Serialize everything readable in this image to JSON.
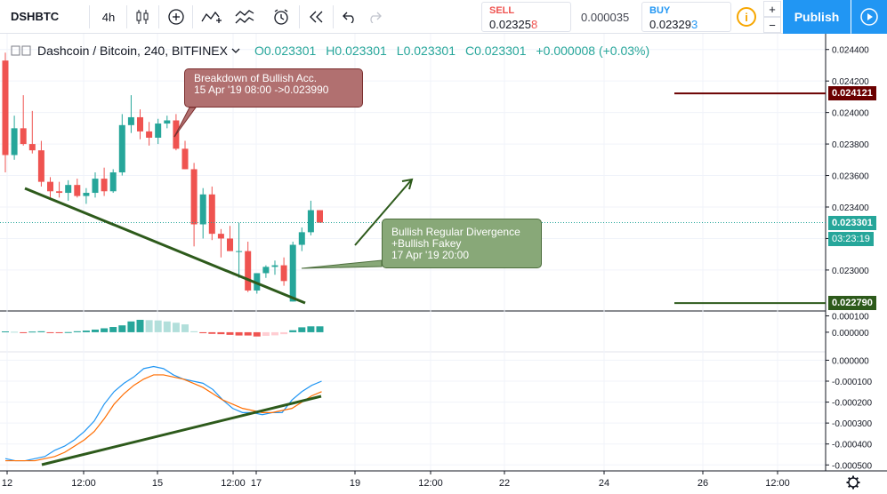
{
  "toolbar": {
    "symbol": "DSHBTC",
    "interval": "4h",
    "sell_label": "SELL",
    "sell_price_main": "0.02325",
    "sell_price_last": "8",
    "spread": "0.000035",
    "buy_label": "BUY",
    "buy_price_main": "0.02329",
    "buy_price_last": "3",
    "info_glyph": "i",
    "plus": "+",
    "minus": "−",
    "publish": "Publish",
    "icons": [
      "candles-icon",
      "add-indicator-icon",
      "indicators-icon",
      "compare-icon",
      "alert-icon",
      "replay-icon",
      "undo-icon",
      "redo-icon",
      "play-icon"
    ]
  },
  "legend": {
    "title": "Dashcoin / Bitcoin, 240, BITFINEX",
    "o": "O0.023301",
    "h": "H0.023301",
    "l": "L0.023301",
    "c": "C0.023301",
    "change": "+0.000008 (+0.03%)"
  },
  "annotations": {
    "red_callout": [
      "Breakdown of Bullish Acc.",
      "15 Apr '19 08:00 ->0.023990"
    ],
    "green_callout": [
      "Bullish Regular Divergence",
      "+Bullish Fakey",
      "17 Apr '19 20:00"
    ]
  },
  "price_tags": {
    "resistance": "0.024121",
    "current": "0.023301",
    "countdown": "03:23:19",
    "support": "0.022790"
  },
  "colors": {
    "up": "#26a69a",
    "down": "#ef5350",
    "trendline": "#2d5a1b",
    "resistance": "#6b0000",
    "support": "#2d5a1b",
    "current": "#26a69a",
    "macd_line": "#2196f3",
    "signal_line": "#ff6d00",
    "accent": "#2196f3"
  },
  "chart_data": {
    "type": "candlestick",
    "title": "Dashcoin / Bitcoin, 240, BITFINEX",
    "price_axis": {
      "ylim": [
        0.02274,
        0.0245
      ],
      "ticks": [
        "0.024400",
        "0.024200",
        "0.024000",
        "0.023800",
        "0.023600",
        "0.023400",
        "0.023200",
        "0.023000"
      ]
    },
    "time_axis": {
      "ticks": [
        "12",
        "12:00",
        "15",
        "12:00",
        "17",
        "19",
        "12:00",
        "22",
        "24",
        "26",
        "12:00"
      ]
    },
    "candles": [
      {
        "o": 0.02433,
        "h": 0.02438,
        "l": 0.02362,
        "c": 0.02373
      },
      {
        "o": 0.02373,
        "h": 0.02398,
        "l": 0.0237,
        "c": 0.0239
      },
      {
        "o": 0.0239,
        "h": 0.02411,
        "l": 0.02379,
        "c": 0.0238
      },
      {
        "o": 0.0238,
        "h": 0.02401,
        "l": 0.02374,
        "c": 0.02376
      },
      {
        "o": 0.02376,
        "h": 0.02382,
        "l": 0.02353,
        "c": 0.02356
      },
      {
        "o": 0.02356,
        "h": 0.02359,
        "l": 0.02346,
        "c": 0.0235
      },
      {
        "o": 0.0235,
        "h": 0.02356,
        "l": 0.02346,
        "c": 0.02349
      },
      {
        "o": 0.02349,
        "h": 0.02357,
        "l": 0.02344,
        "c": 0.02354
      },
      {
        "o": 0.02354,
        "h": 0.02358,
        "l": 0.02346,
        "c": 0.02347
      },
      {
        "o": 0.02347,
        "h": 0.02352,
        "l": 0.02342,
        "c": 0.02349
      },
      {
        "o": 0.02349,
        "h": 0.02362,
        "l": 0.02346,
        "c": 0.02358
      },
      {
        "o": 0.02358,
        "h": 0.02365,
        "l": 0.02347,
        "c": 0.0235
      },
      {
        "o": 0.0235,
        "h": 0.02364,
        "l": 0.02349,
        "c": 0.02362
      },
      {
        "o": 0.02362,
        "h": 0.02399,
        "l": 0.0236,
        "c": 0.02392
      },
      {
        "o": 0.02392,
        "h": 0.02411,
        "l": 0.02387,
        "c": 0.02397
      },
      {
        "o": 0.02397,
        "h": 0.02402,
        "l": 0.02383,
        "c": 0.02388
      },
      {
        "o": 0.02388,
        "h": 0.02394,
        "l": 0.02379,
        "c": 0.02384
      },
      {
        "o": 0.02384,
        "h": 0.02396,
        "l": 0.0238,
        "c": 0.02393
      },
      {
        "o": 0.02393,
        "h": 0.02398,
        "l": 0.0239,
        "c": 0.02395
      },
      {
        "o": 0.02395,
        "h": 0.02399,
        "l": 0.02376,
        "c": 0.02377
      },
      {
        "o": 0.02377,
        "h": 0.02382,
        "l": 0.02364,
        "c": 0.02364
      },
      {
        "o": 0.02364,
        "h": 0.02368,
        "l": 0.02315,
        "c": 0.02329
      },
      {
        "o": 0.02329,
        "h": 0.02352,
        "l": 0.0232,
        "c": 0.02348
      },
      {
        "o": 0.02348,
        "h": 0.02353,
        "l": 0.02319,
        "c": 0.02323
      },
      {
        "o": 0.02323,
        "h": 0.02326,
        "l": 0.02308,
        "c": 0.0232
      },
      {
        "o": 0.0232,
        "h": 0.02328,
        "l": 0.02312,
        "c": 0.02312
      },
      {
        "o": 0.02312,
        "h": 0.0233,
        "l": 0.02295,
        "c": 0.02312
      },
      {
        "o": 0.02312,
        "h": 0.02318,
        "l": 0.02286,
        "c": 0.02287
      },
      {
        "o": 0.02287,
        "h": 0.02298,
        "l": 0.02285,
        "c": 0.02298
      },
      {
        "o": 0.02298,
        "h": 0.02303,
        "l": 0.02295,
        "c": 0.02302
      },
      {
        "o": 0.02302,
        "h": 0.02306,
        "l": 0.02297,
        "c": 0.02303
      },
      {
        "o": 0.02303,
        "h": 0.02308,
        "l": 0.0229,
        "c": 0.02293
      },
      {
        "o": 0.0228,
        "h": 0.02318,
        "l": 0.0228,
        "c": 0.02316
      },
      {
        "o": 0.02316,
        "h": 0.02327,
        "l": 0.02312,
        "c": 0.02324
      },
      {
        "o": 0.02324,
        "h": 0.02344,
        "l": 0.02322,
        "c": 0.02338
      },
      {
        "o": 0.02338,
        "h": 0.02338,
        "l": 0.0233,
        "c": 0.023301
      }
    ],
    "levels": {
      "resistance": 0.024121,
      "support": 0.02279,
      "current": 0.023301
    },
    "indicator1": {
      "type": "bar",
      "ylim": [
        -0.00012,
        0.00013
      ],
      "ticks": [
        "0.000100",
        "0.000000"
      ],
      "values": [
        5e-06,
        3e-06,
        -2e-06,
        4e-06,
        6e-06,
        -1e-06,
        -3e-06,
        1e-06,
        6e-06,
        1e-05,
        1.6e-05,
        2.4e-05,
        3.2e-05,
        4.2e-05,
        6.6e-05,
        7.6e-05,
        7.4e-05,
        7.2e-05,
        6.6e-05,
        5.8e-05,
        4.8e-05,
        6e-06,
        -6e-06,
        -1e-05,
        -1.2e-05,
        -1.6e-05,
        -2e-05,
        -2e-05,
        -2.6e-05,
        -2.2e-05,
        -1.9e-05,
        -1.2e-05,
        1.2e-05,
        3e-05,
        3.6e-05,
        3.6e-05
      ]
    },
    "indicator2": {
      "type": "line",
      "ylim": [
        -0.00052,
        4e-05
      ],
      "ticks": [
        "0.000000",
        "-0.000100",
        "-0.000200",
        "-0.000300",
        "-0.000400",
        "-0.000500"
      ],
      "series": [
        {
          "values": [
            -0.00047,
            -0.00048,
            -0.00048,
            -0.00047,
            -0.00046,
            -0.00043,
            -0.00041,
            -0.00038,
            -0.00034,
            -0.00029,
            -0.00021,
            -0.00015,
            -0.00011,
            -8e-05,
            -4e-05,
            -3e-05,
            -4e-05,
            -7e-05,
            -9e-05,
            -0.0001,
            -0.00011,
            -0.00014,
            -0.00019,
            -0.00023,
            -0.00025,
            -0.00025,
            -0.00026,
            -0.00025,
            -0.00025,
            -0.00019,
            -0.00015,
            -0.00012,
            -0.0001
          ]
        },
        {
          "values": [
            -0.00048,
            -0.00048,
            -0.00048,
            -0.00048,
            -0.00047,
            -0.00046,
            -0.00044,
            -0.00041,
            -0.00038,
            -0.00034,
            -0.00028,
            -0.00021,
            -0.00016,
            -0.00012,
            -9e-05,
            -7e-05,
            -7e-05,
            -8e-05,
            -9e-05,
            -0.00011,
            -0.00013,
            -0.00016,
            -0.00019,
            -0.00021,
            -0.00023,
            -0.00024,
            -0.00025,
            -0.00025,
            -0.00024,
            -0.00023,
            -0.0002,
            -0.00017,
            -0.00015
          ]
        }
      ]
    }
  }
}
